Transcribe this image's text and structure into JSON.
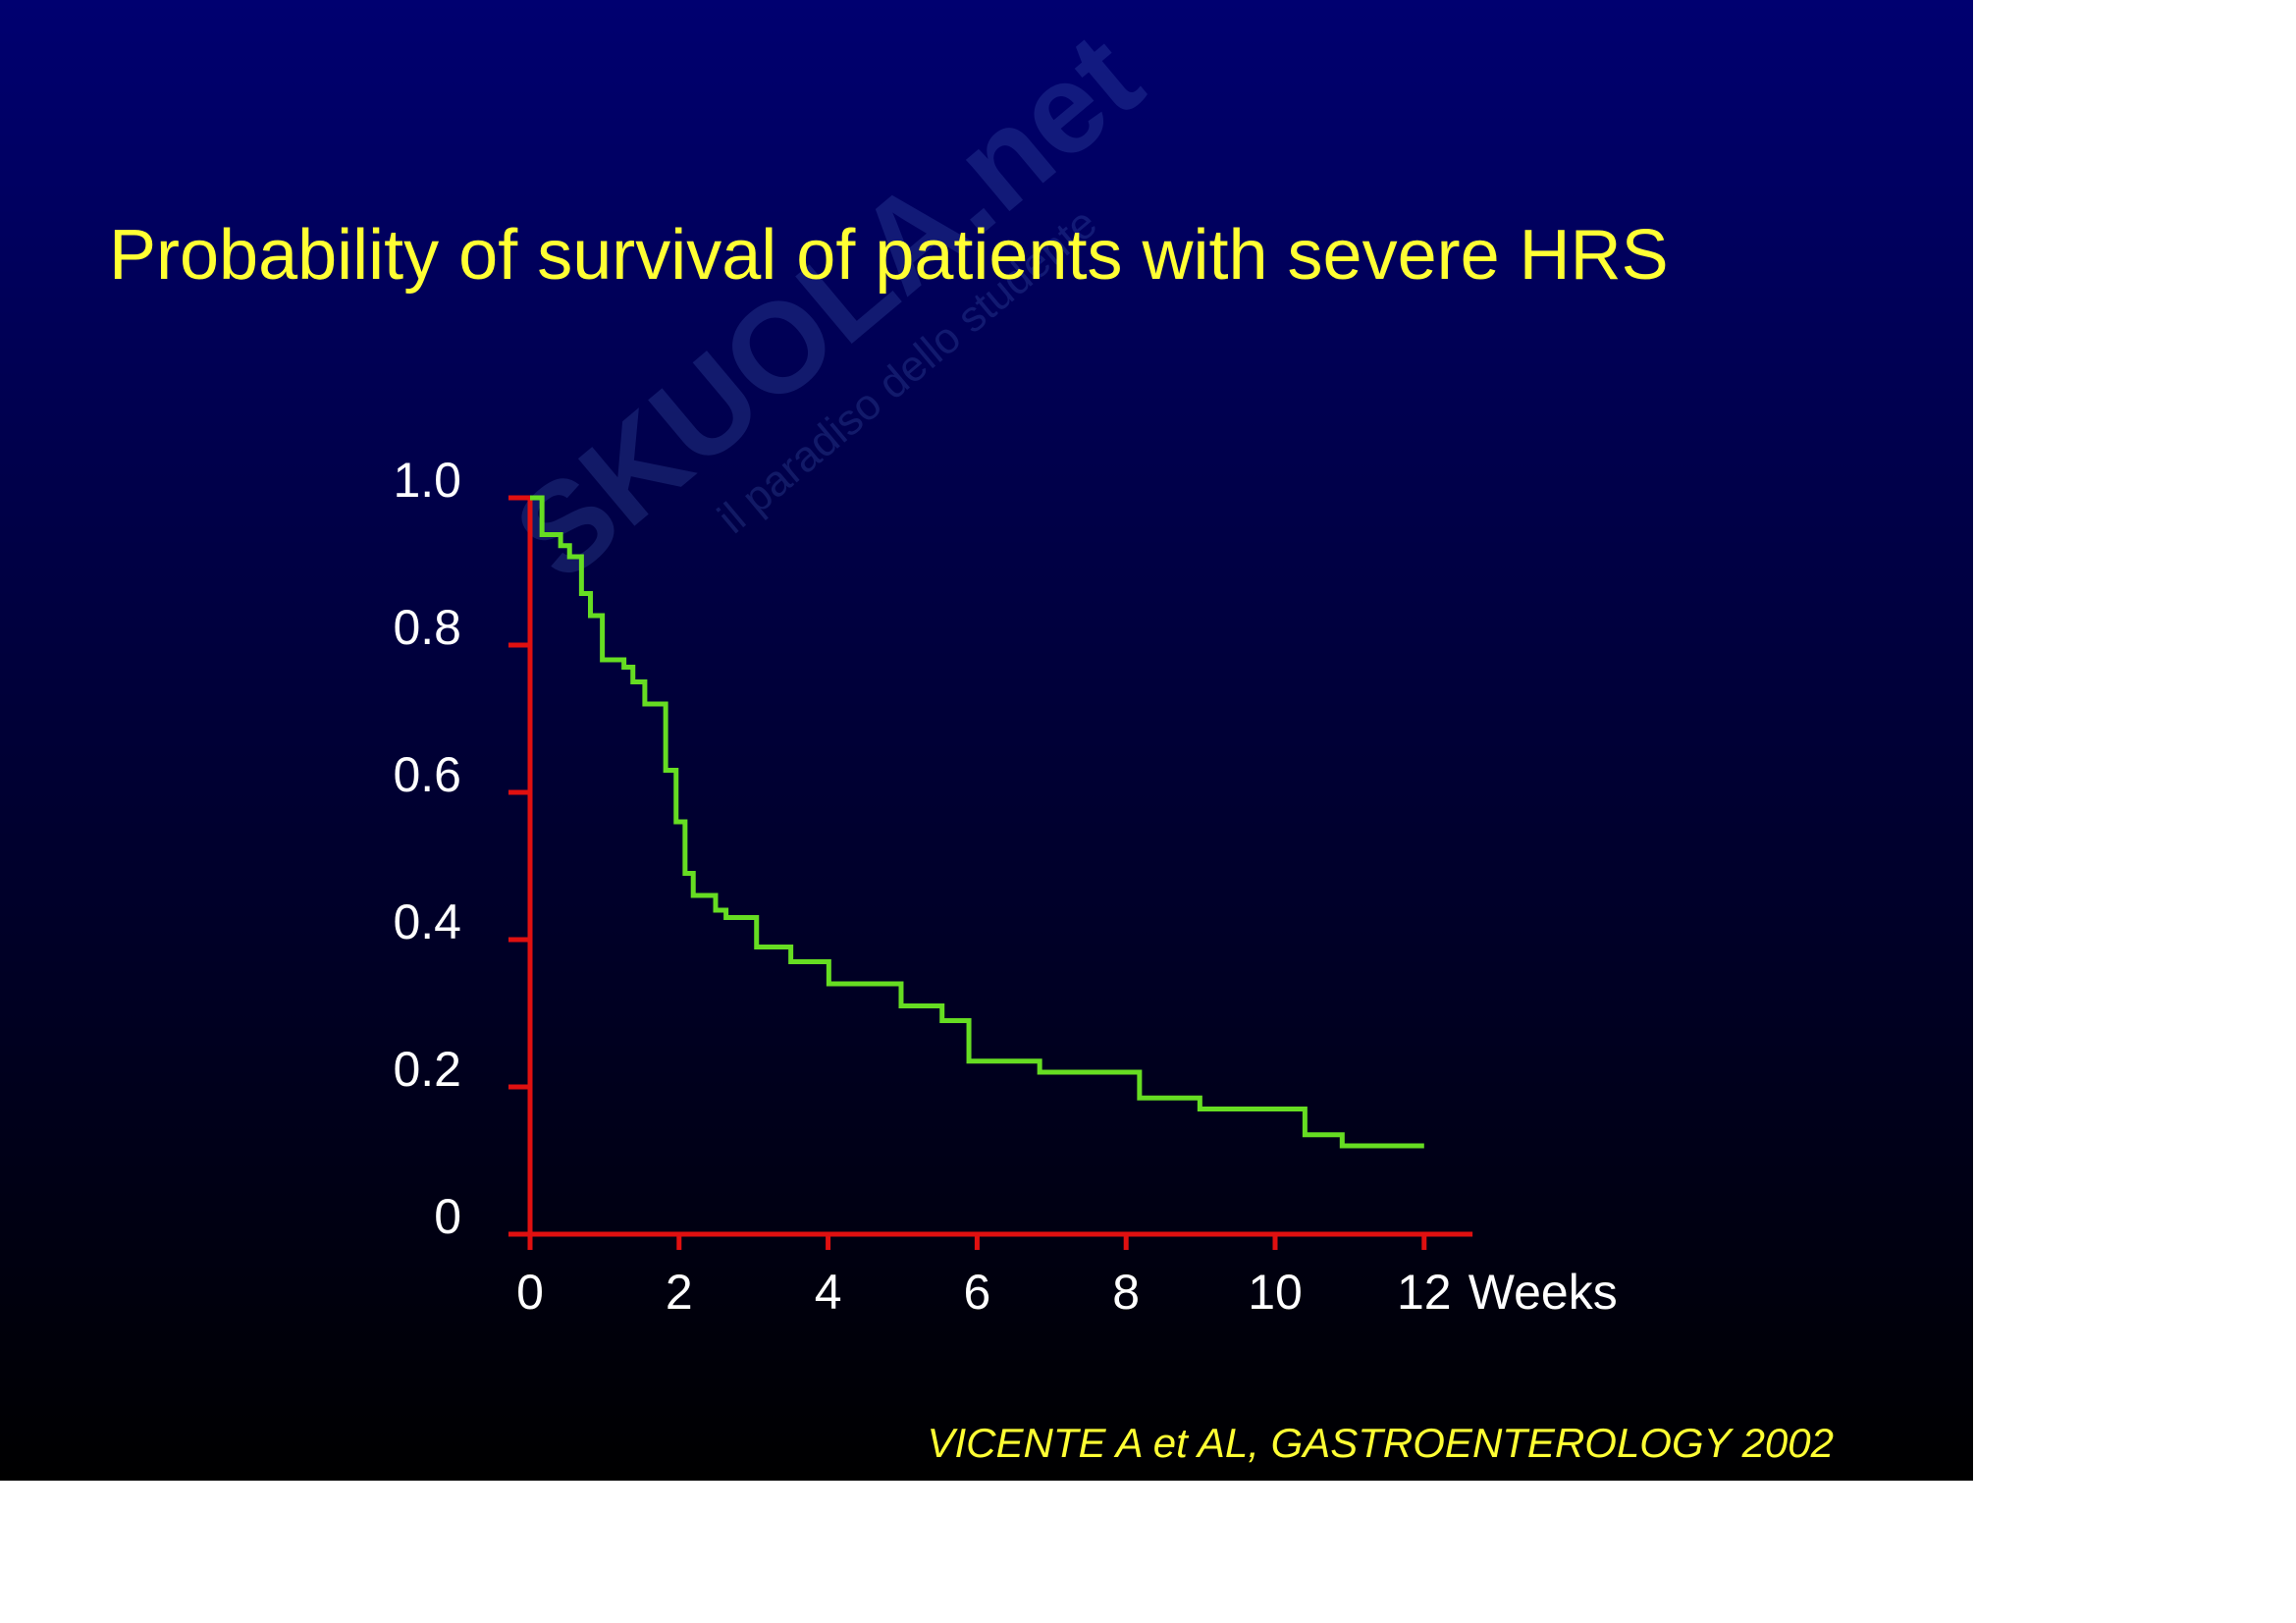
{
  "chart_data": {
    "type": "line",
    "drawstyle": "steps-post",
    "title": "Probability of survival of patients with severe HRS",
    "xlabel": "Weeks",
    "source": "VICENTE A et AL, GASTROENTEROLOGY 2002",
    "watermark": [
      "SKUOLA.net",
      "il paradiso dello studente"
    ],
    "x": [
      0,
      0.16,
      0.41,
      0.53,
      0.69,
      0.81,
      0.97,
      1.26,
      1.38,
      1.54,
      1.82,
      1.96,
      2.08,
      2.19,
      2.49,
      2.63,
      3.04,
      3.5,
      4.01,
      4.98,
      5.53,
      5.89,
      6.84,
      8.18,
      8.99,
      10.4,
      10.9,
      12
    ],
    "values": [
      1.0,
      0.95,
      0.935,
      0.92,
      0.87,
      0.84,
      0.78,
      0.77,
      0.75,
      0.72,
      0.63,
      0.56,
      0.49,
      0.46,
      0.44,
      0.43,
      0.39,
      0.37,
      0.34,
      0.31,
      0.29,
      0.235,
      0.22,
      0.185,
      0.17,
      0.135,
      0.12,
      0.12
    ],
    "color": "#66dd22",
    "axis_color": "#e01010",
    "xlim": [
      0,
      12.65
    ],
    "xticks": [
      0,
      2,
      4,
      6,
      8,
      10,
      12
    ],
    "ylim": [
      0,
      1
    ],
    "yticks": [
      0,
      0.2,
      0.4,
      0.6,
      0.8,
      {
        "value": 1,
        "label": "1.0"
      }
    ],
    "grid": false
  }
}
